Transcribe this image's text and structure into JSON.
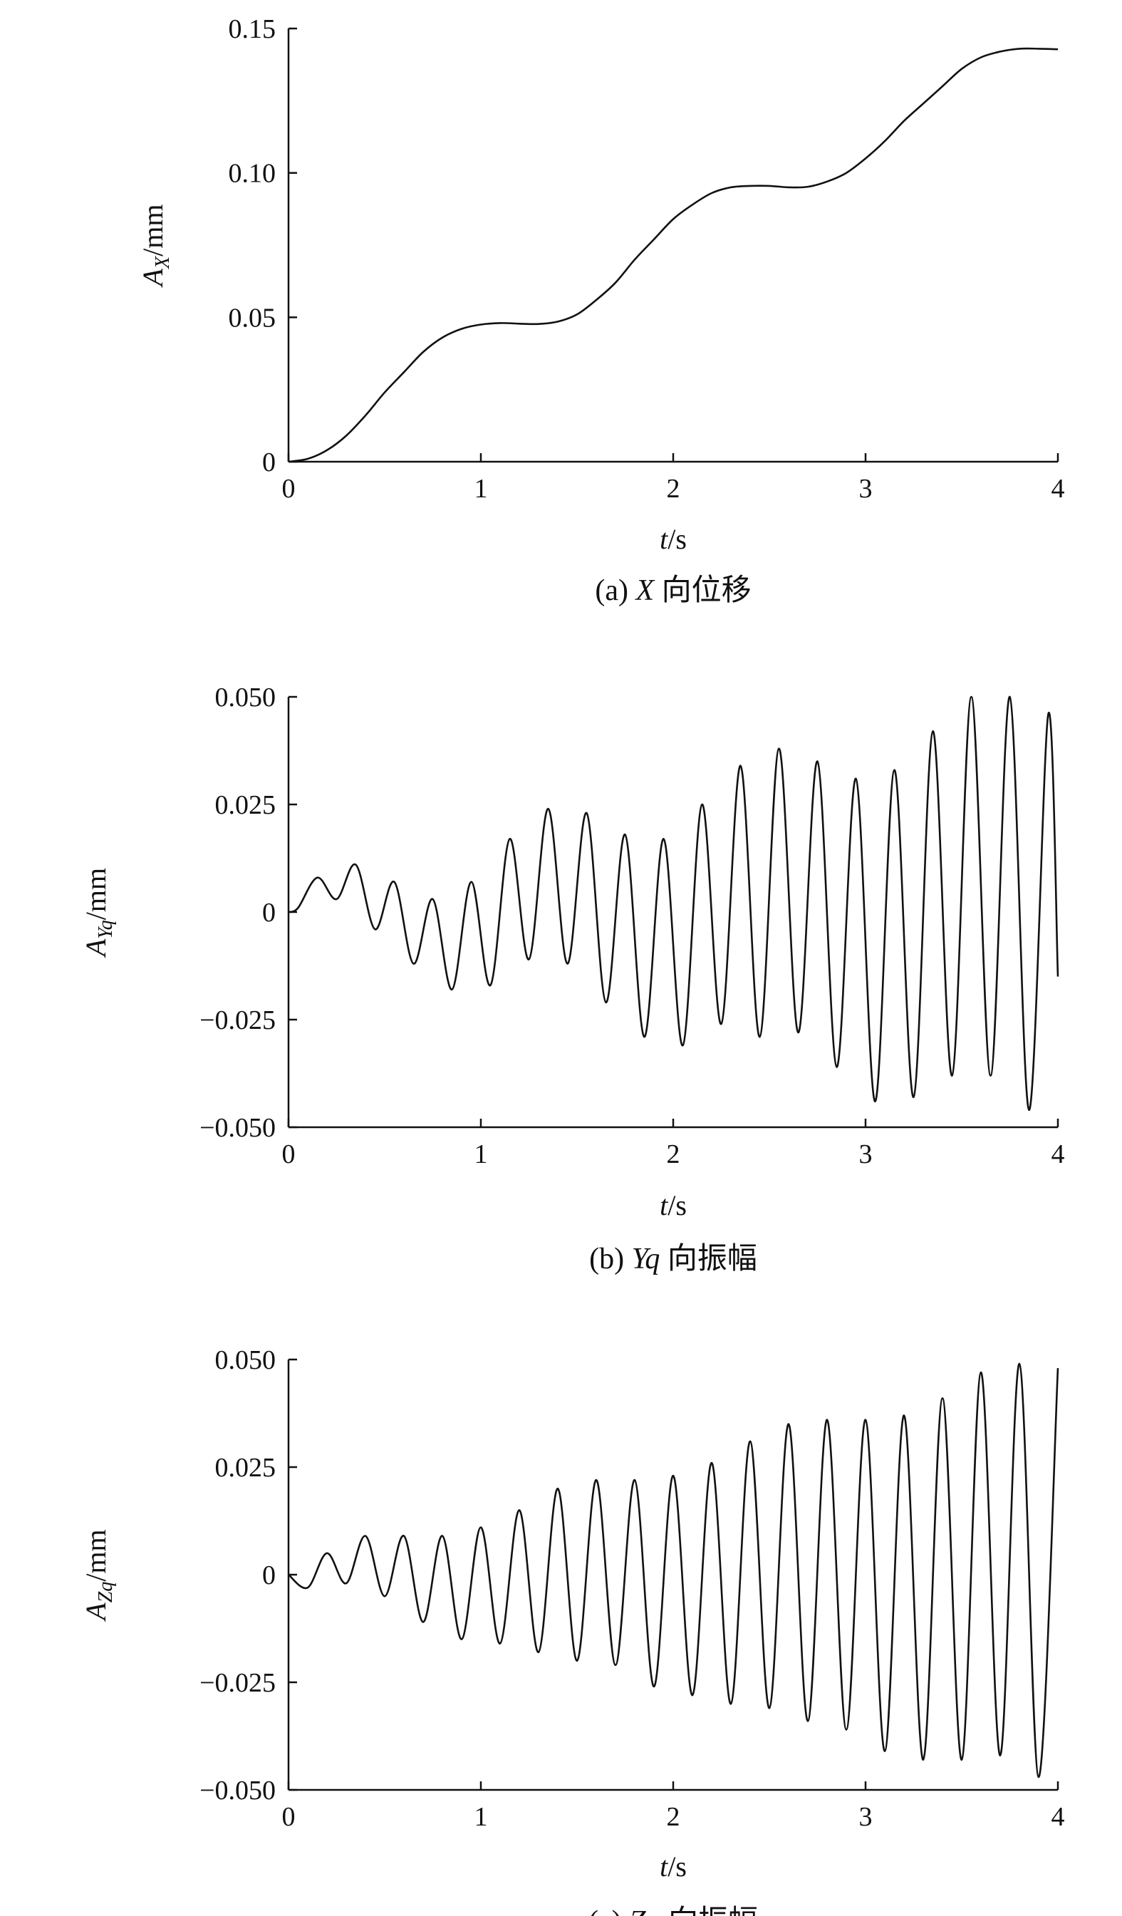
{
  "chart_data": [
    {
      "type": "line",
      "caption": "(a) X 向位移",
      "caption_prefix": "(a) ",
      "caption_var": "X",
      "caption_suffix": " 向位移",
      "xlabel_var": "t",
      "xlabel_unit": "/s",
      "ylabel_var": "A",
      "ylabel_sub": "X",
      "ylabel_unit": "/mm",
      "xlim": [
        0,
        4
      ],
      "ylim": [
        0,
        0.15
      ],
      "xticks": [
        0,
        1,
        2,
        3,
        4
      ],
      "xtick_labels": [
        "0",
        "1",
        "2",
        "3",
        "4"
      ],
      "yticks": [
        0,
        0.05,
        0.1,
        0.15
      ],
      "ytick_labels": [
        "0",
        "0.05",
        "0.10",
        "0.15"
      ],
      "grid": false,
      "series": [
        {
          "x": [
            0,
            0.1,
            0.2,
            0.3,
            0.4,
            0.5,
            0.6,
            0.7,
            0.8,
            0.9,
            1.0,
            1.1,
            1.2,
            1.3,
            1.4,
            1.5,
            1.6,
            1.7,
            1.8,
            1.9,
            2.0,
            2.1,
            2.2,
            2.3,
            2.4,
            2.5,
            2.6,
            2.7,
            2.8,
            2.9,
            3.0,
            3.1,
            3.2,
            3.3,
            3.4,
            3.5,
            3.6,
            3.7,
            3.8,
            3.9,
            4.0
          ],
          "y": [
            0,
            0.001,
            0.004,
            0.009,
            0.016,
            0.024,
            0.031,
            0.038,
            0.043,
            0.046,
            0.0475,
            0.048,
            0.0478,
            0.0477,
            0.0485,
            0.051,
            0.056,
            0.062,
            0.07,
            0.077,
            0.084,
            0.089,
            0.093,
            0.095,
            0.0955,
            0.0955,
            0.095,
            0.0952,
            0.097,
            0.1,
            0.105,
            0.111,
            0.118,
            0.124,
            0.13,
            0.136,
            0.14,
            0.142,
            0.143,
            0.143,
            0.1428
          ]
        }
      ]
    },
    {
      "type": "line",
      "caption": "(b) Yq 向振幅",
      "caption_prefix": "(b) ",
      "caption_var": "Yq",
      "caption_suffix": " 向振幅",
      "xlabel_var": "t",
      "xlabel_unit": "/s",
      "ylabel_var": "A",
      "ylabel_sub": "Yq",
      "ylabel_unit": "/mm",
      "xlim": [
        0,
        4
      ],
      "ylim": [
        -0.05,
        0.05
      ],
      "xticks": [
        0,
        1,
        2,
        3,
        4
      ],
      "xtick_labels": [
        "0",
        "1",
        "2",
        "3",
        "4"
      ],
      "yticks": [
        -0.05,
        -0.025,
        0,
        0.025,
        0.05
      ],
      "ytick_labels": [
        "−0.050",
        "−0.025",
        "0",
        "0.025",
        "0.050"
      ],
      "grid": false,
      "series": [
        {
          "x": [
            0,
            0.05,
            0.15,
            0.25,
            0.35,
            0.45,
            0.55,
            0.65,
            0.75,
            0.85,
            0.95,
            1.05,
            1.15,
            1.25,
            1.35,
            1.45,
            1.55,
            1.65,
            1.75,
            1.85,
            1.95,
            2.05,
            2.15,
            2.25,
            2.35,
            2.45,
            2.55,
            2.65,
            2.75,
            2.85,
            2.95,
            3.05,
            3.15,
            3.25,
            3.35,
            3.45,
            3.55,
            3.65,
            3.75,
            3.85,
            3.95,
            4.0
          ],
          "y": [
            0,
            0.001,
            0.008,
            0.003,
            0.011,
            -0.004,
            0.007,
            -0.012,
            0.003,
            -0.018,
            0.007,
            -0.017,
            0.017,
            -0.011,
            0.024,
            -0.012,
            0.023,
            -0.021,
            0.018,
            -0.029,
            0.017,
            -0.031,
            0.025,
            -0.026,
            0.034,
            -0.029,
            0.038,
            -0.028,
            0.035,
            -0.036,
            0.031,
            -0.044,
            0.033,
            -0.043,
            0.042,
            -0.038,
            0.05,
            -0.038,
            0.05,
            -0.046,
            0.046,
            -0.015
          ]
        }
      ]
    },
    {
      "type": "line",
      "caption": "(c) Zq 向振幅",
      "caption_prefix": "(c) ",
      "caption_var": "Zq",
      "caption_suffix": " 向振幅",
      "xlabel_var": "t",
      "xlabel_unit": "/s",
      "ylabel_var": "A",
      "ylabel_sub": "Zq",
      "ylabel_unit": "/mm",
      "xlim": [
        0,
        4
      ],
      "ylim": [
        -0.05,
        0.05
      ],
      "xticks": [
        0,
        1,
        2,
        3,
        4
      ],
      "xtick_labels": [
        "0",
        "1",
        "2",
        "3",
        "4"
      ],
      "yticks": [
        -0.05,
        -0.025,
        0,
        0.025,
        0.05
      ],
      "ytick_labels": [
        "−0.050",
        "−0.025",
        "0",
        "0.025",
        "0.050"
      ],
      "grid": false,
      "series": [
        {
          "x": [
            0,
            0.1,
            0.2,
            0.3,
            0.4,
            0.5,
            0.6,
            0.7,
            0.8,
            0.9,
            1.0,
            1.1,
            1.2,
            1.3,
            1.4,
            1.5,
            1.6,
            1.7,
            1.8,
            1.9,
            2.0,
            2.1,
            2.2,
            2.3,
            2.4,
            2.5,
            2.6,
            2.7,
            2.8,
            2.9,
            3.0,
            3.1,
            3.2,
            3.3,
            3.4,
            3.5,
            3.6,
            3.7,
            3.8,
            3.9,
            4.0
          ],
          "y": [
            0,
            -0.003,
            0.005,
            -0.002,
            0.009,
            -0.005,
            0.009,
            -0.011,
            0.009,
            -0.015,
            0.011,
            -0.016,
            0.015,
            -0.018,
            0.02,
            -0.02,
            0.022,
            -0.021,
            0.022,
            -0.026,
            0.023,
            -0.028,
            0.026,
            -0.03,
            0.031,
            -0.031,
            0.035,
            -0.034,
            0.036,
            -0.036,
            0.036,
            -0.041,
            0.037,
            -0.043,
            0.041,
            -0.043,
            0.047,
            -0.042,
            0.049,
            -0.047,
            0.048
          ]
        }
      ]
    }
  ]
}
